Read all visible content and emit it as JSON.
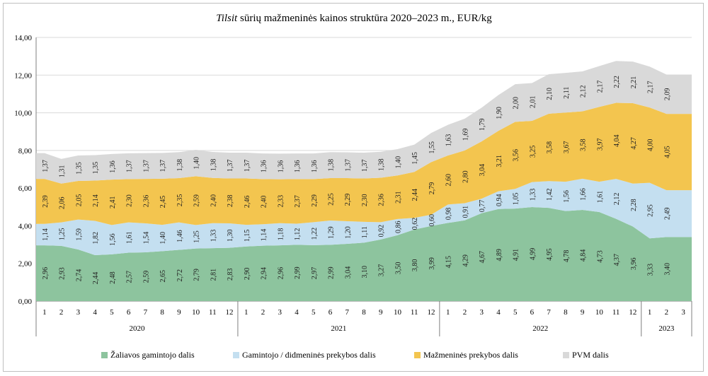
{
  "chart_data": {
    "type": "area",
    "title_italic": "Tilsit",
    "title_rest": " sūrių mažmeninės kainos struktūra 2020–2023 m., EUR/kg",
    "ylim": [
      0,
      14
    ],
    "yticks": [
      "0,00",
      "2,00",
      "4,00",
      "6,00",
      "8,00",
      "10,00",
      "12,00",
      "14,00"
    ],
    "grid": true,
    "legend_position": "bottom",
    "x": [
      "1",
      "2",
      "3",
      "4",
      "5",
      "6",
      "7",
      "8",
      "9",
      "10",
      "11",
      "12",
      "1",
      "2",
      "3",
      "4",
      "5",
      "6",
      "7",
      "8",
      "9",
      "10",
      "11",
      "12",
      "1",
      "2",
      "3",
      "4",
      "5",
      "6",
      "7",
      "8",
      "9",
      "10",
      "11",
      "12",
      "1",
      "2",
      "3"
    ],
    "years": [
      {
        "label": "2020",
        "months": 12
      },
      {
        "label": "2021",
        "months": 12
      },
      {
        "label": "2022",
        "months": 12
      },
      {
        "label": "2023",
        "months": 3
      }
    ],
    "series": [
      {
        "name": "Žaliavos gamintojo dalis",
        "color": "#8dc49e",
        "values": [
          2.96,
          2.93,
          2.74,
          2.44,
          2.48,
          2.57,
          2.59,
          2.65,
          2.72,
          2.79,
          2.81,
          2.83,
          2.9,
          2.94,
          2.96,
          2.99,
          2.97,
          2.99,
          3.04,
          3.1,
          3.27,
          3.5,
          3.8,
          3.99,
          4.15,
          4.29,
          4.67,
          4.89,
          4.91,
          4.99,
          4.95,
          4.78,
          4.84,
          4.73,
          4.37,
          3.96,
          3.33,
          3.4,
          3.4
        ],
        "labels": [
          "2,96",
          "2,93",
          "2,74",
          "2,44",
          "2,48",
          "2,57",
          "2,59",
          "2,65",
          "2,72",
          "2,79",
          "2,81",
          "2,83",
          "2,90",
          "2,94",
          "2,96",
          "2,99",
          "2,97",
          "2,99",
          "3,04",
          "3,10",
          "3,27",
          "3,50",
          "3,80",
          "3,99",
          "4,15",
          "4,29",
          "4,67",
          "4,89",
          "4,91",
          "4,99",
          "4,95",
          "4,78",
          "4,84",
          "4,73",
          "4,37",
          "3,96",
          "3,33",
          "3,40",
          ""
        ]
      },
      {
        "name": "Gamintojo / didmeninės prekybos dalis",
        "color": "#c4dff0",
        "values": [
          1.14,
          1.25,
          1.59,
          1.82,
          1.56,
          1.61,
          1.54,
          1.4,
          1.46,
          1.25,
          1.33,
          1.3,
          1.15,
          1.14,
          1.18,
          1.12,
          1.22,
          1.29,
          1.2,
          1.11,
          0.92,
          0.86,
          0.62,
          0.6,
          0.98,
          0.91,
          0.77,
          0.94,
          1.05,
          1.33,
          1.42,
          1.56,
          1.66,
          1.61,
          2.12,
          2.28,
          2.95,
          2.49,
          2.49
        ],
        "labels": [
          "1,14",
          "1,25",
          "1,59",
          "1,82",
          "1,56",
          "1,61",
          "1,54",
          "1,40",
          "1,46",
          "1,25",
          "1,33",
          "1,30",
          "1,15",
          "1,14",
          "1,18",
          "1,12",
          "1,22",
          "1,29",
          "1,20",
          "1,11",
          "0,92",
          "0,86",
          "0,62",
          "0,60",
          "0,98",
          "0,91",
          "0,77",
          "0,94",
          "1,05",
          "1,33",
          "1,42",
          "1,56",
          "1,66",
          "1,61",
          "2,12",
          "2,28",
          "2,95",
          "2,49",
          ""
        ]
      },
      {
        "name": "Mažmeninės prekybos dalis",
        "color": "#f3c54f",
        "values": [
          2.39,
          2.06,
          2.05,
          2.14,
          2.41,
          2.3,
          2.36,
          2.45,
          2.35,
          2.59,
          2.4,
          2.38,
          2.46,
          2.4,
          2.33,
          2.37,
          2.29,
          2.25,
          2.29,
          2.3,
          2.36,
          2.31,
          2.44,
          2.79,
          2.6,
          2.8,
          3.04,
          3.21,
          3.56,
          3.25,
          3.58,
          3.67,
          3.58,
          3.97,
          4.04,
          4.27,
          4.0,
          4.05,
          4.05
        ],
        "labels": [
          "2,39",
          "2,06",
          "2,05",
          "2,14",
          "2,41",
          "2,30",
          "2,36",
          "2,45",
          "2,35",
          "2,59",
          "2,40",
          "2,38",
          "2,46",
          "2,40",
          "2,33",
          "2,37",
          "2,29",
          "2,25",
          "2,29",
          "2,30",
          "2,36",
          "2,31",
          "2,44",
          "2,79",
          "2,60",
          "2,80",
          "3,04",
          "3,21",
          "3,56",
          "3,25",
          "3,58",
          "3,67",
          "3,58",
          "3,97",
          "4,04",
          "4,27",
          "4,00",
          "4,05",
          ""
        ]
      },
      {
        "name": "PVM dalis",
        "color": "#d9d9d9",
        "values": [
          1.37,
          1.31,
          1.35,
          1.35,
          1.36,
          1.37,
          1.37,
          1.37,
          1.38,
          1.4,
          1.38,
          1.37,
          1.37,
          1.36,
          1.36,
          1.36,
          1.36,
          1.38,
          1.37,
          1.37,
          1.38,
          1.4,
          1.45,
          1.55,
          1.63,
          1.69,
          1.79,
          1.9,
          2.0,
          2.01,
          2.1,
          2.11,
          2.12,
          2.17,
          2.22,
          2.21,
          2.17,
          2.09,
          2.09
        ],
        "labels": [
          "1,37",
          "1,31",
          "1,35",
          "1,35",
          "1,36",
          "1,37",
          "1,37",
          "1,37",
          "1,38",
          "1,40",
          "1,38",
          "1,37",
          "1,37",
          "1,36",
          "1,36",
          "1,36",
          "1,36",
          "1,38",
          "1,37",
          "1,37",
          "1,38",
          "1,40",
          "1,45",
          "1,55",
          "1,63",
          "1,69",
          "1,79",
          "1,90",
          "2,00",
          "2,01",
          "2,10",
          "2,11",
          "2,12",
          "2,17",
          "2,22",
          "2,21",
          "2,17",
          "2,09",
          ""
        ]
      }
    ]
  }
}
